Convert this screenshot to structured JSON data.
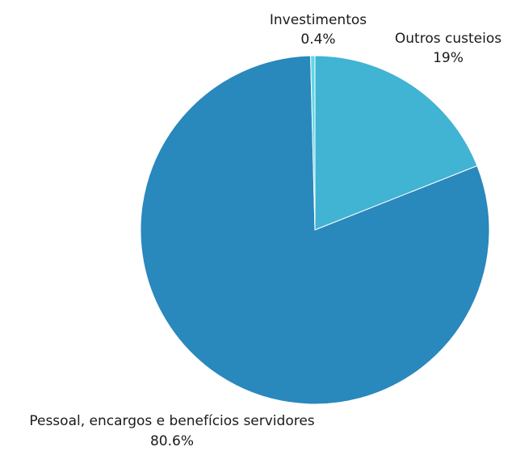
{
  "chart_data": {
    "type": "pie",
    "title": "",
    "start_angle_deg": 0,
    "direction": "clockwise",
    "slices": [
      {
        "label": "Outros custeios",
        "value": 19,
        "value_label": "19%",
        "color": "#41b3d3"
      },
      {
        "label": "Pessoal, encargos e benefícios servidores",
        "value": 80.6,
        "value_label": "80.6%",
        "color": "#2988bc"
      },
      {
        "label": "Investimentos",
        "value": 0.4,
        "value_label": "0.4%",
        "color": "#61d7e4"
      }
    ]
  }
}
